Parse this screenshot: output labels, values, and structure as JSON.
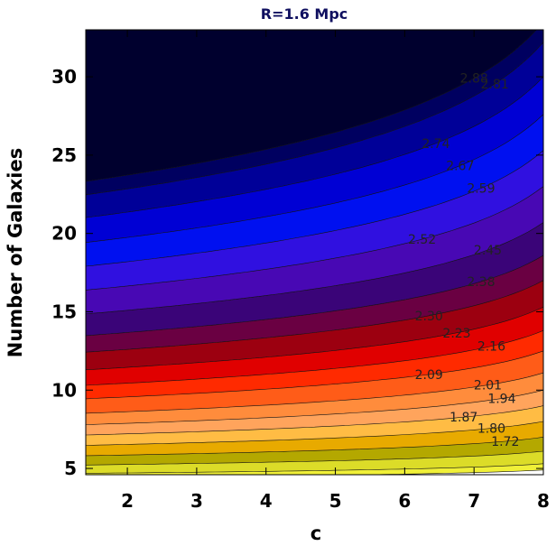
{
  "chart_data": {
    "type": "contour",
    "title": "R=1.6 Mpc",
    "title_color": "#101060",
    "xlabel": "c",
    "ylabel": "Number of Galaxies",
    "xlim": [
      1.4,
      8.0
    ],
    "ylim": [
      4.6,
      33.0
    ],
    "xticks": [
      "2",
      "3",
      "4",
      "5",
      "6",
      "7",
      "8"
    ],
    "xtick_values": [
      2,
      3,
      4,
      5,
      6,
      7,
      8
    ],
    "yticks": [
      "5",
      "10",
      "15",
      "20",
      "25",
      "30"
    ],
    "ytick_values": [
      5,
      10,
      15,
      20,
      25,
      30
    ],
    "contour_levels": [
      {
        "label": "2.88",
        "color": "#00002e",
        "label_c": 6.6,
        "x_lab": 7.0
      },
      {
        "label": "2.81",
        "color": "#000060",
        "label_c": 6.9,
        "x_lab": 7.3
      },
      {
        "label": "2.74",
        "color": "#000098",
        "label_c": 6.0,
        "x_lab": 6.45
      },
      {
        "label": "2.67",
        "color": "#0000d4",
        "label_c": 6.4,
        "x_lab": 6.8
      },
      {
        "label": "2.59",
        "color": "#0010f0",
        "label_c": 6.6,
        "x_lab": 7.1
      },
      {
        "label": "2.52",
        "color": "#3010e0",
        "label_c": 5.85,
        "x_lab": 6.25
      },
      {
        "label": "2.45",
        "color": "#4808b4",
        "label_c": 6.8,
        "x_lab": 7.2
      },
      {
        "label": "2.38",
        "color": "#3a0478",
        "label_c": 6.8,
        "x_lab": 7.1
      },
      {
        "label": "2.30",
        "color": "#6a0042",
        "label_c": 6.0,
        "x_lab": 6.35
      },
      {
        "label": "2.23",
        "color": "#9c0010",
        "label_c": 6.4,
        "x_lab": 6.75
      },
      {
        "label": "2.16",
        "color": "#e00000",
        "label_c": 6.9,
        "x_lab": 7.25
      },
      {
        "label": "2.09",
        "color": "#ff2a00",
        "label_c": 6.0,
        "x_lab": 6.35
      },
      {
        "label": "2.01",
        "color": "#ff5c18",
        "label_c": 6.9,
        "x_lab": 7.2
      },
      {
        "label": "1.94",
        "color": "#ff8c3c",
        "label_c": 7.1,
        "x_lab": 7.4
      },
      {
        "label": "1.87",
        "color": "#ffa45c",
        "label_c": 6.6,
        "x_lab": 6.85
      },
      {
        "label": "1.80",
        "color": "#ffbc44",
        "label_c": 7.0,
        "x_lab": 7.25
      },
      {
        "label": "1.72",
        "color": "#e8aa00",
        "label_c": 7.2,
        "x_lab": 7.45
      }
    ],
    "extra_bands": [
      "#b4a800",
      "#dcdc28",
      "#f0f038"
    ],
    "contour_bottom_at_c_max": [
      33.5,
      32.2,
      30.0,
      27.6,
      25.3,
      23.0,
      20.7,
      18.6,
      17.0,
      15.3,
      13.8,
      12.5,
      11.1,
      10.0,
      9.0,
      8.0,
      7.0,
      6.1,
      5.3,
      4.9
    ],
    "contour_shape_pivot_c": 5.7
  }
}
